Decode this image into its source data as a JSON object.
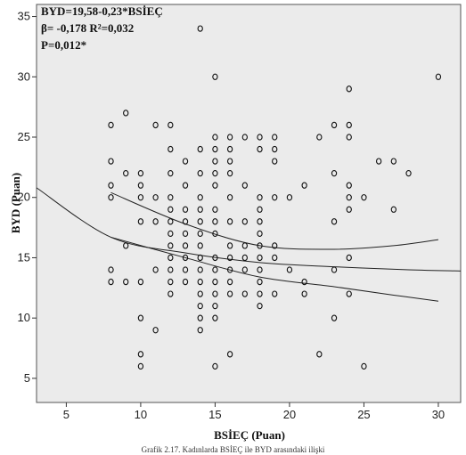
{
  "chart_data": {
    "type": "scatter",
    "xlabel": "BSİEÇ (Puan)",
    "ylabel": "BYD (Puan)",
    "xlim": [
      3,
      31.5
    ],
    "ylim": [
      3,
      36
    ],
    "xticks": [
      5,
      10,
      15,
      20,
      25,
      30
    ],
    "yticks": [
      5,
      10,
      15,
      20,
      25,
      30,
      35
    ],
    "grid": false,
    "annotations": {
      "line1": "BYD=19,58-0,23*BSİEÇ",
      "line2": "β= -0,178   R²=0,032",
      "line3": "P=0,012*"
    },
    "caption": "Grafik 2.17. Kadınlarda BSİEÇ ile BYD arasındaki ilişki",
    "points": [
      [
        8,
        26
      ],
      [
        8,
        23
      ],
      [
        8,
        21
      ],
      [
        8,
        20
      ],
      [
        8,
        14
      ],
      [
        8,
        13
      ],
      [
        9,
        27
      ],
      [
        9,
        22
      ],
      [
        9,
        16
      ],
      [
        9,
        13
      ],
      [
        10,
        22
      ],
      [
        10,
        21
      ],
      [
        10,
        20
      ],
      [
        10,
        18
      ],
      [
        10,
        13
      ],
      [
        10,
        10
      ],
      [
        10,
        7
      ],
      [
        10,
        6
      ],
      [
        11,
        26
      ],
      [
        11,
        20
      ],
      [
        11,
        18
      ],
      [
        11,
        14
      ],
      [
        11,
        9
      ],
      [
        12,
        26
      ],
      [
        12,
        24
      ],
      [
        12,
        22
      ],
      [
        12,
        20
      ],
      [
        12,
        19
      ],
      [
        12,
        18
      ],
      [
        12,
        17
      ],
      [
        12,
        16
      ],
      [
        12,
        15
      ],
      [
        12,
        14
      ],
      [
        12,
        13
      ],
      [
        12,
        12
      ],
      [
        13,
        23
      ],
      [
        13,
        21
      ],
      [
        13,
        19
      ],
      [
        13,
        18
      ],
      [
        13,
        17
      ],
      [
        13,
        16
      ],
      [
        13,
        15
      ],
      [
        13,
        14
      ],
      [
        13,
        13
      ],
      [
        14,
        34
      ],
      [
        14,
        24
      ],
      [
        14,
        22
      ],
      [
        14,
        20
      ],
      [
        14,
        19
      ],
      [
        14,
        18
      ],
      [
        14,
        17
      ],
      [
        14,
        16
      ],
      [
        14,
        15
      ],
      [
        14,
        14
      ],
      [
        14,
        13
      ],
      [
        14,
        12
      ],
      [
        14,
        11
      ],
      [
        14,
        10
      ],
      [
        14,
        9
      ],
      [
        15,
        30
      ],
      [
        15,
        25
      ],
      [
        15,
        24
      ],
      [
        15,
        23
      ],
      [
        15,
        22
      ],
      [
        15,
        21
      ],
      [
        15,
        19
      ],
      [
        15,
        18
      ],
      [
        15,
        17
      ],
      [
        15,
        15
      ],
      [
        15,
        14
      ],
      [
        15,
        13
      ],
      [
        15,
        12
      ],
      [
        15,
        11
      ],
      [
        15,
        10
      ],
      [
        15,
        6
      ],
      [
        16,
        25
      ],
      [
        16,
        24
      ],
      [
        16,
        23
      ],
      [
        16,
        22
      ],
      [
        16,
        20
      ],
      [
        16,
        18
      ],
      [
        16,
        16
      ],
      [
        16,
        15
      ],
      [
        16,
        14
      ],
      [
        16,
        13
      ],
      [
        16,
        12
      ],
      [
        16,
        7
      ],
      [
        17,
        25
      ],
      [
        17,
        21
      ],
      [
        17,
        18
      ],
      [
        17,
        16
      ],
      [
        17,
        15
      ],
      [
        17,
        14
      ],
      [
        17,
        12
      ],
      [
        18,
        25
      ],
      [
        18,
        24
      ],
      [
        18,
        20
      ],
      [
        18,
        19
      ],
      [
        18,
        18
      ],
      [
        18,
        17
      ],
      [
        18,
        16
      ],
      [
        18,
        15
      ],
      [
        18,
        14
      ],
      [
        18,
        13
      ],
      [
        18,
        12
      ],
      [
        18,
        11
      ],
      [
        19,
        25
      ],
      [
        19,
        24
      ],
      [
        19,
        23
      ],
      [
        19,
        20
      ],
      [
        19,
        16
      ],
      [
        19,
        15
      ],
      [
        19,
        12
      ],
      [
        20,
        20
      ],
      [
        20,
        14
      ],
      [
        21,
        21
      ],
      [
        21,
        13
      ],
      [
        21,
        12
      ],
      [
        22,
        25
      ],
      [
        22,
        7
      ],
      [
        23,
        26
      ],
      [
        23,
        22
      ],
      [
        23,
        18
      ],
      [
        23,
        14
      ],
      [
        23,
        10
      ],
      [
        24,
        29
      ],
      [
        24,
        26
      ],
      [
        24,
        25
      ],
      [
        24,
        21
      ],
      [
        24,
        20
      ],
      [
        24,
        19
      ],
      [
        24,
        15
      ],
      [
        24,
        12
      ],
      [
        25,
        20
      ],
      [
        25,
        6
      ],
      [
        26,
        23
      ],
      [
        27,
        23
      ],
      [
        27,
        19
      ],
      [
        28,
        22
      ],
      [
        30,
        30
      ]
    ],
    "fit": {
      "intercept": 19.58,
      "slope": -0.23
    },
    "lines": {
      "fit_curve": [
        [
          3,
          20.8
        ],
        [
          8,
          16.7
        ],
        [
          13,
          15.4
        ],
        [
          18,
          14.6
        ],
        [
          23,
          14.25
        ],
        [
          28,
          14.0
        ],
        [
          31.5,
          13.9
        ]
      ],
      "upper_band": [
        [
          8,
          20.4
        ],
        [
          13,
          17.8
        ],
        [
          18,
          16.0
        ],
        [
          23,
          15.7
        ],
        [
          27,
          16.0
        ],
        [
          30,
          16.5
        ]
      ],
      "lower_band": [
        [
          8,
          16.7
        ],
        [
          13,
          15.0
        ],
        [
          18,
          13.4
        ],
        [
          23,
          12.6
        ],
        [
          27,
          11.9
        ],
        [
          30,
          11.4
        ]
      ]
    }
  }
}
